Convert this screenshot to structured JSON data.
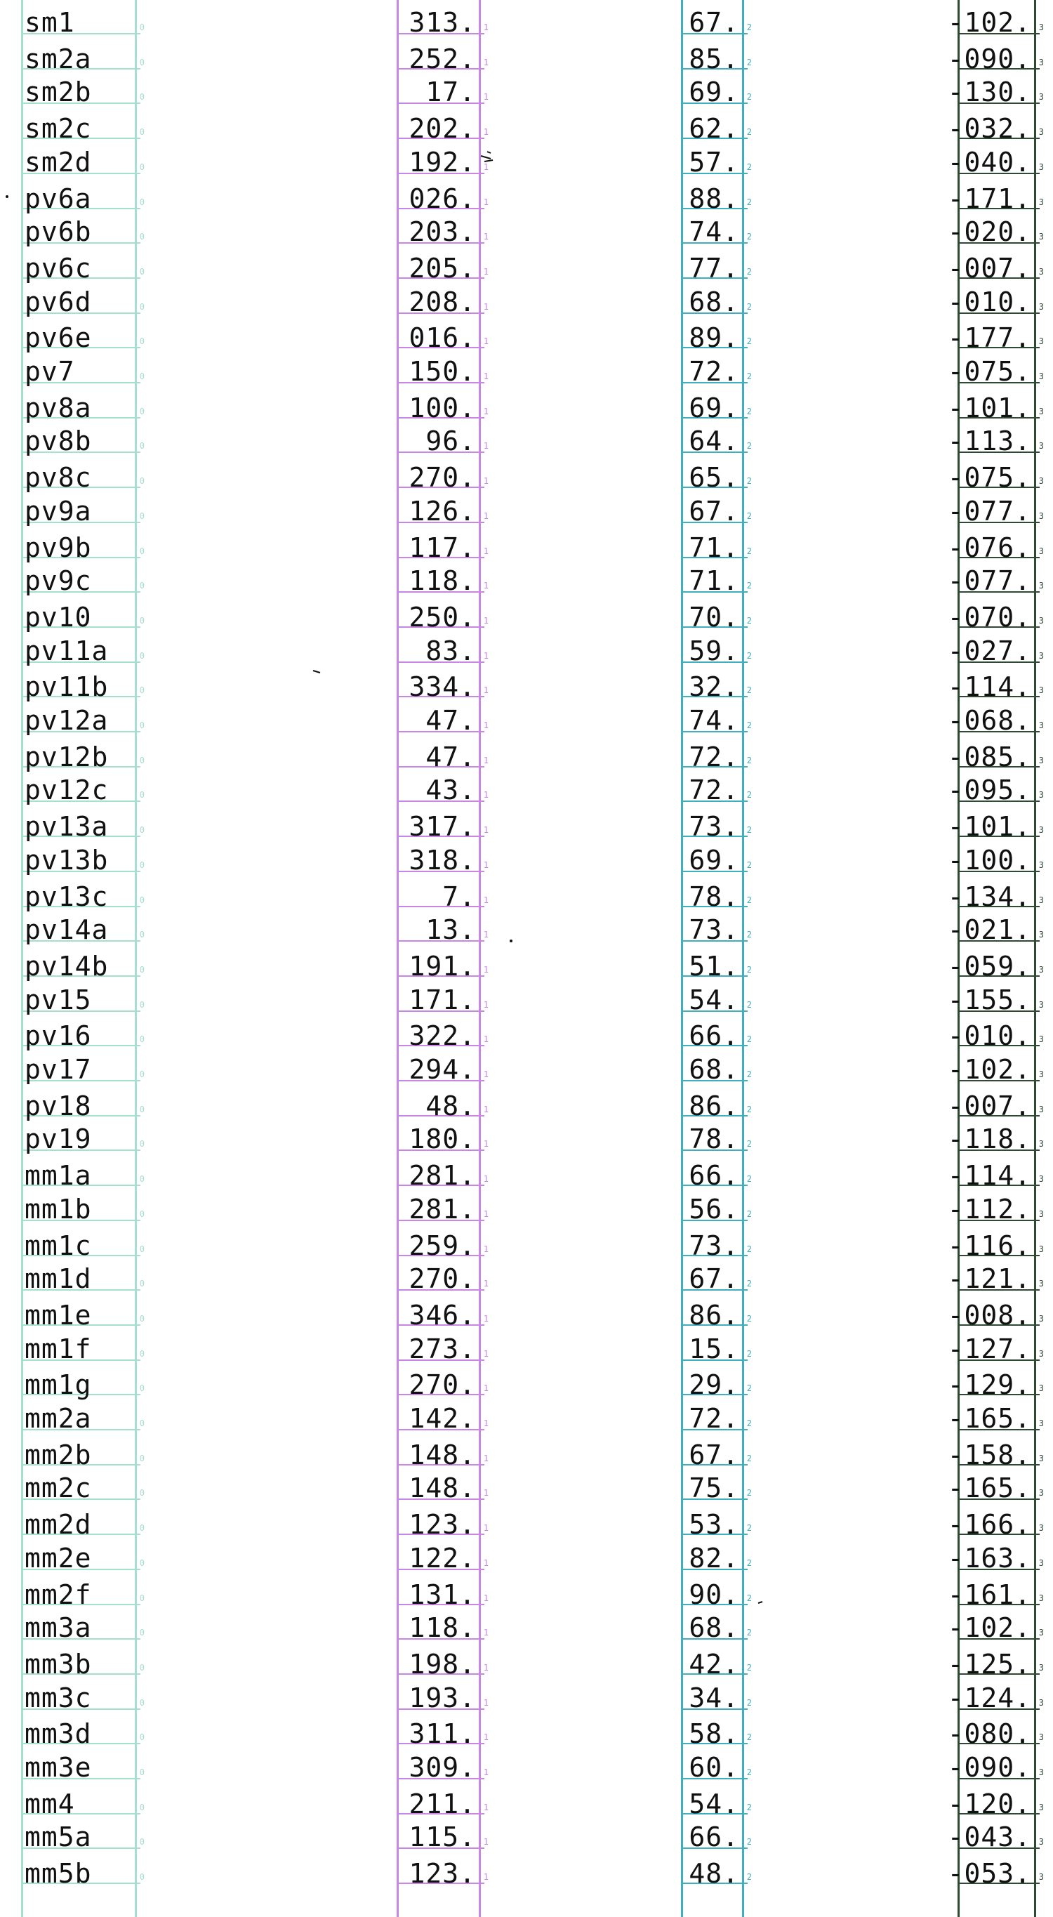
{
  "sheet": {
    "labels": [
      "sm1",
      "sm2a",
      "sm2b",
      "sm2c",
      "sm2d",
      "pv6a",
      "pv6b",
      "pv6c",
      "pv6d",
      "pv6e",
      "pv7",
      "pv8a",
      "pv8b",
      "pv8c",
      "pv9a",
      "pv9b",
      "pv9c",
      "pv10",
      "pv11a",
      "pv11b",
      "pv12a",
      "pv12b",
      "pv12c",
      "pv13a",
      "pv13b",
      "pv13c",
      "pv14a",
      "pv14b",
      "pv15",
      "pv16",
      "pv17",
      "pv18",
      "pv19",
      "mm1a",
      "mm1b",
      "mm1c",
      "mm1d",
      "mm1e",
      "mm1f",
      "mm1g",
      "mm2a",
      "mm2b",
      "mm2c",
      "mm2d",
      "mm2e",
      "mm2f",
      "mm3a",
      "mm3b",
      "mm3c",
      "mm3d",
      "mm3e",
      "mm4",
      "mm5a",
      "mm5b"
    ],
    "col1": [
      "313.",
      "252.",
      "17.",
      "202.",
      "192.",
      "026.",
      "203.",
      "205.",
      "208.",
      "016.",
      "150.",
      "100.",
      "96.",
      "270.",
      "126.",
      "117.",
      "118.",
      "250.",
      "83.",
      "334.",
      "47.",
      "47.",
      "43.",
      "317.",
      "318.",
      "7.",
      "13.",
      "191.",
      "171.",
      "322.",
      "294.",
      "48.",
      "180.",
      "281.",
      "281.",
      "259.",
      "270.",
      "346.",
      "273.",
      "270.",
      "142.",
      "148.",
      "148.",
      "123.",
      "122.",
      "131.",
      "118.",
      "198.",
      "193.",
      "311.",
      "309.",
      "211.",
      "115.",
      "123."
    ],
    "col2": [
      "67.",
      "85.",
      "69.",
      "62.",
      "57.",
      "88.",
      "74.",
      "77.",
      "68.",
      "89.",
      "72.",
      "69.",
      "64.",
      "65.",
      "67.",
      "71.",
      "71.",
      "70.",
      "59.",
      "32.",
      "74.",
      "72.",
      "72.",
      "73.",
      "69.",
      "78.",
      "73.",
      "51.",
      "54.",
      "66.",
      "68.",
      "86.",
      "78.",
      "66.",
      "56.",
      "73.",
      "67.",
      "86.",
      "15.",
      "29.",
      "72.",
      "67.",
      "75.",
      "53.",
      "82.",
      "90.",
      "68.",
      "42.",
      "34.",
      "58.",
      "60.",
      "54.",
      "66.",
      "48."
    ],
    "col3": [
      "-102.",
      "-090.",
      "-130.",
      "-032.",
      "-040.",
      "-171.",
      "-020.",
      "-007.",
      "-010.",
      "-177.",
      "-075.",
      "-101.",
      "-113.",
      "-075.",
      "-077.",
      "-076.",
      "-077.",
      "-070.",
      "-027.",
      "-114.",
      "-068.",
      "-085.",
      "-095.",
      "-101.",
      "-100.",
      "-134.",
      "-021.",
      "-059.",
      "-155.",
      "-010.",
      "-102.",
      "-007.",
      "-118.",
      "-114.",
      "-112.",
      "-116.",
      "-121.",
      "-008.",
      "-127.",
      "-129.",
      "-165.",
      "-158.",
      "-165.",
      "-166.",
      "-163.",
      "-161.",
      "-102.",
      "-125.",
      "-124.",
      "-080.",
      "-090.",
      "-120.",
      "-043.",
      "-053."
    ],
    "tick_col0": "0",
    "tick_col1": "1",
    "tick_col2": "2",
    "tick_col3": "3"
  }
}
